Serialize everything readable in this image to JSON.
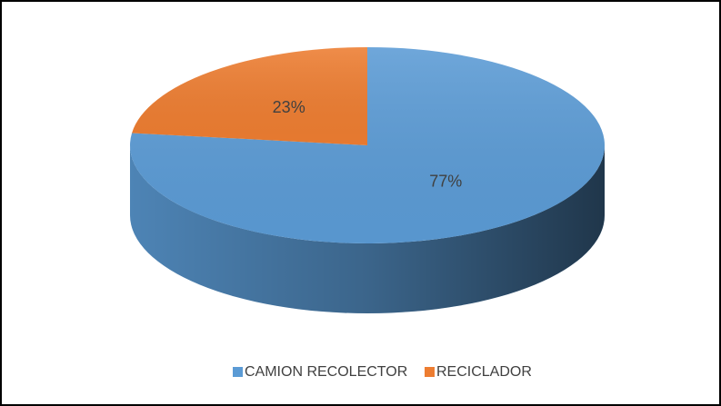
{
  "chart_data": {
    "type": "pie",
    "categories": [
      "CAMION RECOLECTOR",
      "RECICLADOR"
    ],
    "values": [
      77,
      23
    ],
    "value_labels": [
      "77%",
      "23%"
    ],
    "colors": [
      "#5b9bd5",
      "#ed7d31"
    ],
    "legend": "bottom"
  }
}
